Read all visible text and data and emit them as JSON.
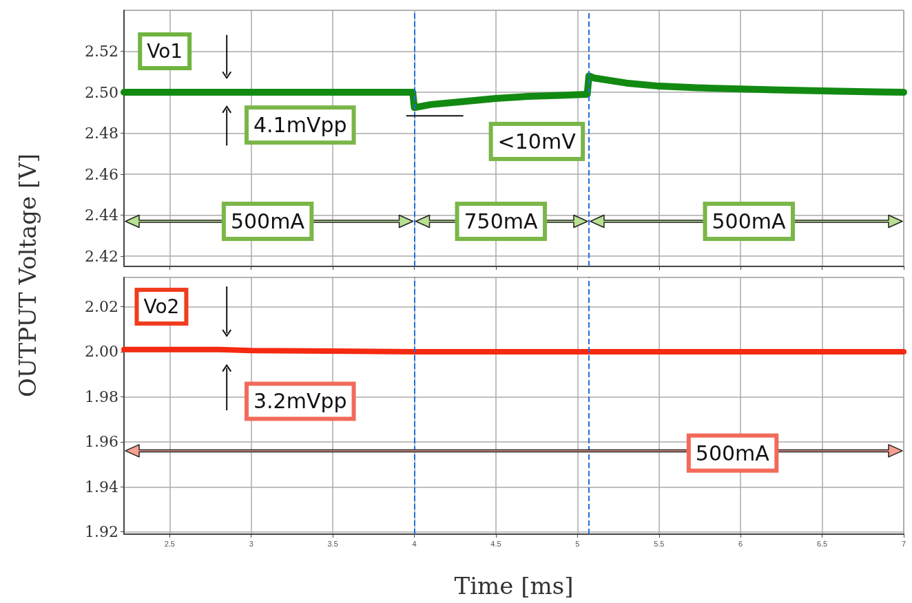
{
  "chart_data": [
    {
      "type": "line",
      "ylabel": "OUTPUT Voltage [V]",
      "xlim": [
        2.22,
        7.0
      ],
      "xticks": [
        2.5,
        3,
        3.5,
        4,
        4.5,
        5,
        5.5,
        6,
        6.5,
        7
      ],
      "ylim": [
        2.415,
        2.54
      ],
      "yticks": [
        2.42,
        2.44,
        2.46,
        2.48,
        {
          "value": 2.5,
          "label": "2.50"
        },
        2.52
      ],
      "grid": true,
      "line_style": "solid",
      "tick_labels": "y",
      "series": [
        {
          "color": "#128a12",
          "x": [
            2.22,
            3.99,
            4.0,
            4.1,
            4.3,
            4.5,
            4.7,
            4.9,
            5.06,
            5.07,
            5.1,
            5.3,
            5.5,
            5.8,
            6.2,
            6.6,
            7.0
          ],
          "values": [
            2.5,
            2.5,
            2.4925,
            2.494,
            2.4955,
            2.497,
            2.498,
            2.4985,
            2.499,
            2.508,
            2.507,
            2.5045,
            2.503,
            2.502,
            2.5012,
            2.5005,
            2.5
          ]
        }
      ],
      "ref_lines": [
        {
          "axis": "x",
          "value": 4.0,
          "color": "#1f6fe0",
          "line_style": "dashed"
        },
        {
          "axis": "x",
          "value": 5.07,
          "color": "#1f6fe0",
          "line_style": "dashed"
        }
      ],
      "annotations": [
        "Vo1",
        "4.1mVpp",
        "<10mV",
        "500mA",
        "750mA",
        "500mA"
      ]
    },
    {
      "type": "line",
      "xlabel": "Time [ms]",
      "xlim": [
        2.22,
        7.0
      ],
      "xticks": [
        2.5,
        3,
        3.5,
        4,
        4.5,
        5,
        5.5,
        6,
        6.5,
        7
      ],
      "ylim": [
        1.919,
        2.033
      ],
      "yticks": [
        1.92,
        1.94,
        1.96,
        1.98,
        {
          "value": 2.0,
          "label": "2.00"
        },
        2.02
      ],
      "grid": true,
      "line_style": "solid",
      "series": [
        {
          "color": "#f52a10",
          "x": [
            2.22,
            2.8,
            3.0,
            4.0,
            7.0
          ],
          "values": [
            2.001,
            2.001,
            2.0005,
            2.0,
            2.0
          ]
        }
      ],
      "ref_lines": [
        {
          "axis": "x",
          "value": 4.0,
          "color": "#1f6fe0",
          "line_style": "dashed"
        },
        {
          "axis": "x",
          "value": 5.07,
          "color": "#1f6fe0",
          "line_style": "dashed"
        }
      ],
      "annotations": [
        "Vo2",
        "3.2mVpp",
        "500mA"
      ]
    }
  ]
}
